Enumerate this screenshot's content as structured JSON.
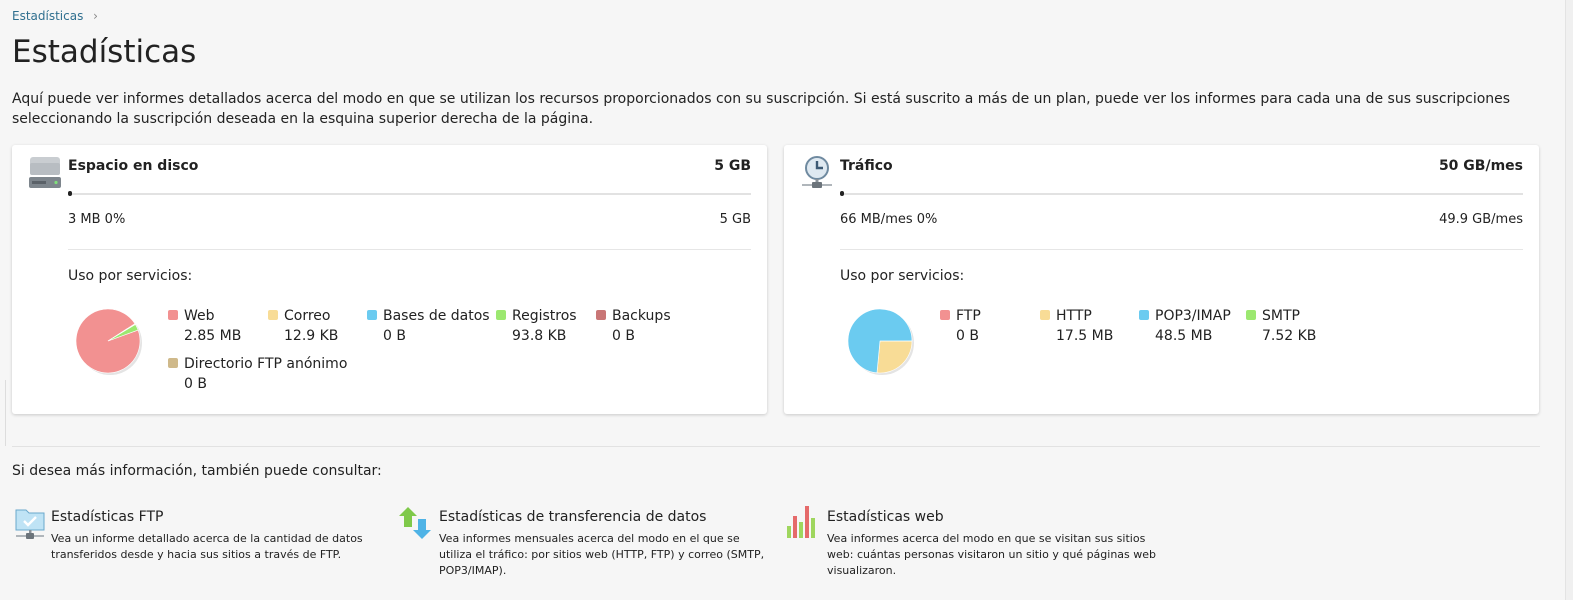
{
  "breadcrumb": {
    "label": "Estadísticas",
    "separator": "›"
  },
  "page_title": "Estadísticas",
  "intro": "Aquí puede ver informes detallados acerca del modo en que se utilizan los recursos proporcionados con su suscripción. Si está suscrito a más de un plan, puede ver los informes para cada una de sus suscripciones seleccionando la suscripción deseada en la esquina superior derecha de la página.",
  "disk": {
    "icon": "hard-drive-icon",
    "title": "Espacio en disco",
    "total": "5 GB",
    "used": "3 MB 0%",
    "available": "5 GB",
    "usage_fraction": 0.0006,
    "services_label": "Uso por servicios:",
    "services": [
      {
        "name": "Web",
        "value": "2.85 MB",
        "color": "#f29191",
        "bytes_kb": 2918
      },
      {
        "name": "Correo",
        "value": "12.9 KB",
        "color": "#f8dc96",
        "bytes_kb": 12.9
      },
      {
        "name": "Bases de datos",
        "value": "0 B",
        "color": "#6bcbf0",
        "bytes_kb": 0
      },
      {
        "name": "Registros",
        "value": "93.8 KB",
        "color": "#9ce870",
        "bytes_kb": 93.8
      },
      {
        "name": "Backups",
        "value": "0 B",
        "color": "#c97676",
        "bytes_kb": 0
      },
      {
        "name": "Directorio FTP anónimo",
        "value": "0 B",
        "color": "#cfb98a",
        "bytes_kb": 0
      }
    ]
  },
  "traffic": {
    "icon": "clock-network-icon",
    "title": "Tráfico",
    "total": "50 GB/mes",
    "used": "66 MB/mes 0%",
    "available": "49.9 GB/mes",
    "usage_fraction": 0.0013,
    "services_label": "Uso por servicios:",
    "services": [
      {
        "name": "FTP",
        "value": "0 B",
        "color": "#f29191",
        "bytes_kb": 0
      },
      {
        "name": "HTTP",
        "value": "17.5 MB",
        "color": "#f8dc96",
        "bytes_kb": 17920
      },
      {
        "name": "POP3/IMAP",
        "value": "48.5 MB",
        "color": "#6bcbf0",
        "bytes_kb": 49664
      },
      {
        "name": "SMTP",
        "value": "7.52 KB",
        "color": "#9ce870",
        "bytes_kb": 7.52
      }
    ]
  },
  "more_info": "Si desea más información, también puede consultar:",
  "links": [
    {
      "icon": "ftp-folder-icon",
      "title": "Estadísticas FTP",
      "desc": "Vea un informe detallado acerca de la cantidad de datos transferidos desde y hacia sus sitios a través de FTP."
    },
    {
      "icon": "transfer-arrows-icon",
      "title": "Estadísticas de transferencia de datos",
      "desc": "Vea informes mensuales acerca del modo en el que se utiliza el tráfico: por sitios web (HTTP, FTP) y correo (SMTP, POP3/IMAP)."
    },
    {
      "icon": "bar-chart-icon",
      "title": "Estadísticas web",
      "desc": "Vea informes acerca del modo en que se visitan sus sitios web: cuántas personas visitaron un sitio y qué páginas web visualizaron."
    }
  ]
}
